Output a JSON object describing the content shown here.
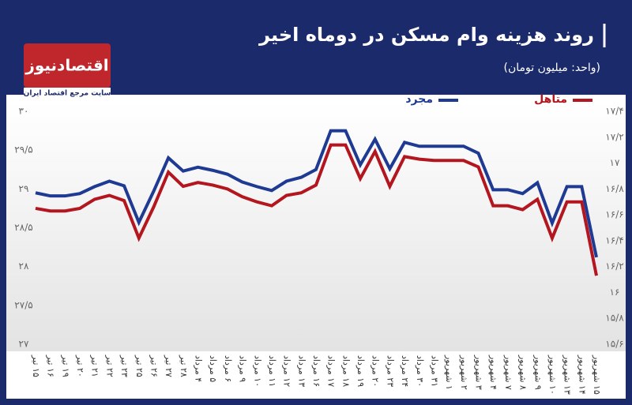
{
  "chart_data": {
    "type": "line",
    "title": "روند هزینه وام مسکن در دوماه اخیر",
    "subtitle": "(واحد: میلیون تومان)",
    "logo": "اقتصادنیوز",
    "tagline": "سایت مرجع اقتصاد ایران",
    "categories": [
      "۱۵ تیر",
      "۱۶ تیر",
      "۱۹ تیر",
      "۲۰ تیر",
      "۲۱ تیر",
      "۲۲ تیر",
      "۲۳ تیر",
      "۲۵ تیر",
      "۲۶ تیر",
      "۲۷ تیر",
      "۲۸ تیر",
      "۴ مرداد",
      "۵ مرداد",
      "۶ مرداد",
      "۹ مرداد",
      "۱۰ مرداد",
      "۱۱ مرداد",
      "۱۲ مرداد",
      "۱۳ مرداد",
      "۱۶ مرداد",
      "۱۷ مرداد",
      "۱۸ مرداد",
      "۱۹ مرداد",
      "۲۰ مرداد",
      "۲۳ مرداد",
      "۲۴ مرداد",
      "۳۰ مرداد",
      "۳۱ مرداد",
      "۱ شهریور",
      "۲ شهریور",
      "۳ شهریور",
      "۴ شهریور",
      "۷ شهریور",
      "۸ شهریور",
      "۹ شهریور",
      "۱۰ شهریور",
      "۱۳ شهریور",
      "۱۴ شهریور",
      "۱۵ شهریور"
    ],
    "series": [
      {
        "name": "مجرد",
        "color": "#1f3a93",
        "axis": "y",
        "values": [
          28.95,
          28.91,
          28.91,
          28.94,
          29.03,
          29.1,
          29.04,
          28.57,
          28.97,
          29.4,
          29.23,
          29.28,
          29.24,
          29.19,
          29.09,
          29.03,
          28.98,
          29.1,
          29.15,
          29.25,
          29.75,
          29.75,
          29.31,
          29.64,
          29.26,
          29.6,
          29.55,
          29.55,
          29.55,
          29.55,
          29.46,
          28.99,
          28.99,
          28.94,
          29.08,
          28.56,
          29.03,
          29.03,
          28.12
        ]
      },
      {
        "name": "متاهل",
        "color": "#b3161e",
        "axis": "y2",
        "values": [
          16.65,
          16.63,
          16.63,
          16.65,
          16.72,
          16.75,
          16.71,
          16.42,
          16.66,
          16.93,
          16.82,
          16.85,
          16.83,
          16.8,
          16.74,
          16.7,
          16.67,
          16.75,
          16.77,
          16.83,
          17.14,
          17.14,
          16.88,
          17.09,
          16.82,
          17.05,
          17.03,
          17.02,
          17.02,
          17.02,
          16.97,
          16.67,
          16.67,
          16.64,
          16.72,
          16.42,
          16.7,
          16.7,
          16.13
        ]
      }
    ],
    "ylim": [
      27,
      30
    ],
    "yticks": [
      {
        "value": 27,
        "label": "۲۷"
      },
      {
        "value": 27.5,
        "label": "۲۷/۵"
      },
      {
        "value": 28,
        "label": "۲۸"
      },
      {
        "value": 28.5,
        "label": "۲۸/۵"
      },
      {
        "value": 29,
        "label": "۲۹"
      },
      {
        "value": 29.5,
        "label": "۲۹/۵"
      },
      {
        "value": 30,
        "label": "۳۰"
      }
    ],
    "y2lim": [
      15.6,
      17.4
    ],
    "y2ticks": [
      {
        "value": 15.6,
        "label": "۱۵/۶"
      },
      {
        "value": 15.8,
        "label": "۱۵/۸"
      },
      {
        "value": 16,
        "label": "۱۶"
      },
      {
        "value": 16.2,
        "label": "۱۶/۲"
      },
      {
        "value": 16.4,
        "label": "۱۶/۴"
      },
      {
        "value": 16.6,
        "label": "۱۶/۶"
      },
      {
        "value": 16.8,
        "label": "۱۶/۸"
      },
      {
        "value": 17,
        "label": "۱۷"
      },
      {
        "value": 17.2,
        "label": "۱۷/۲"
      },
      {
        "value": 17.4,
        "label": "۱۷/۴"
      }
    ],
    "grid": false
  }
}
